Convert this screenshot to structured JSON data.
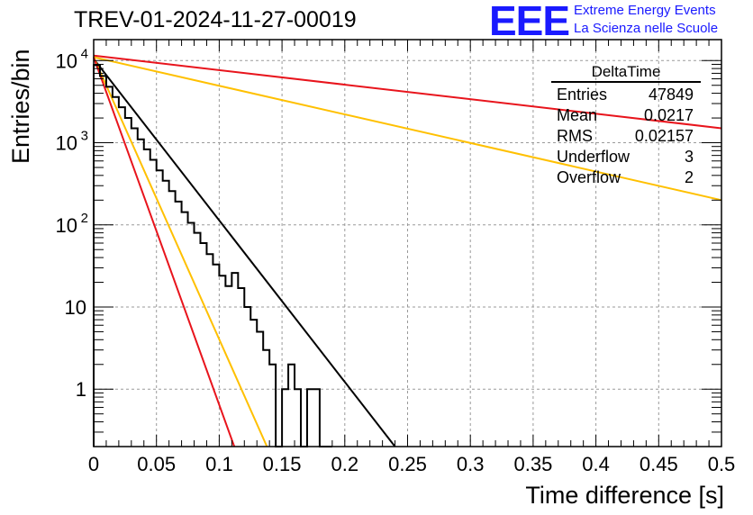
{
  "title": "TREV-01-2024-11-27-00019",
  "logo": {
    "mark": "EEE",
    "line1": "Extreme Energy Events",
    "line2": "La Scienza nelle Scuole"
  },
  "stats": {
    "name": "DeltaTime",
    "rows": [
      {
        "label": "Entries",
        "value": "47849"
      },
      {
        "label": "Mean",
        "value": "0.0217"
      },
      {
        "label": "RMS",
        "value": "0.02157"
      },
      {
        "label": "Underflow",
        "value": "3"
      },
      {
        "label": "Overflow",
        "value": "2"
      }
    ]
  },
  "chart_data": {
    "type": "histogram",
    "xlabel": "Time difference [s]",
    "ylabel": "Entries/bin",
    "xlim": [
      0,
      0.5
    ],
    "ylim": [
      0.2,
      18000
    ],
    "y_scale": "log",
    "grid": true,
    "x_ticks": [
      "0",
      "0.05",
      "0.1",
      "0.15",
      "0.2",
      "0.25",
      "0.3",
      "0.35",
      "0.4",
      "0.45",
      "0.5"
    ],
    "y_ticks": [
      {
        "value": 1,
        "base": "1",
        "exp": ""
      },
      {
        "value": 10,
        "base": "10",
        "exp": ""
      },
      {
        "value": 100,
        "base": "10",
        "exp": "2"
      },
      {
        "value": 1000,
        "base": "10",
        "exp": "3"
      },
      {
        "value": 10000,
        "base": "10",
        "exp": "4"
      }
    ],
    "bin_width": 0.005,
    "bin_contents": [
      8800,
      6500,
      4800,
      3600,
      2700,
      2000,
      1500,
      1100,
      830,
      620,
      460,
      345,
      258,
      192,
      143,
      106,
      80,
      60,
      44,
      33,
      24,
      18,
      26,
      17,
      10,
      7,
      5,
      3,
      2,
      0.2,
      1,
      2,
      1,
      0.2,
      1,
      1,
      0.2,
      0.2
    ],
    "fit_lines": [
      {
        "color": "#000000",
        "x": [
          0,
          0.24
        ],
        "y": [
          10500,
          0.2
        ]
      },
      {
        "color": "#e8141c",
        "x": [
          0,
          0.5
        ],
        "y": [
          11500,
          1500
        ]
      },
      {
        "color": "#ffc000",
        "x": [
          0,
          0.5
        ],
        "y": [
          11000,
          200
        ]
      },
      {
        "color": "#ffc000",
        "x": [
          0,
          0.138
        ],
        "y": [
          11000,
          0.2
        ]
      },
      {
        "color": "#e8141c",
        "x": [
          0,
          0.112
        ],
        "y": [
          11000,
          0.2
        ]
      }
    ]
  }
}
